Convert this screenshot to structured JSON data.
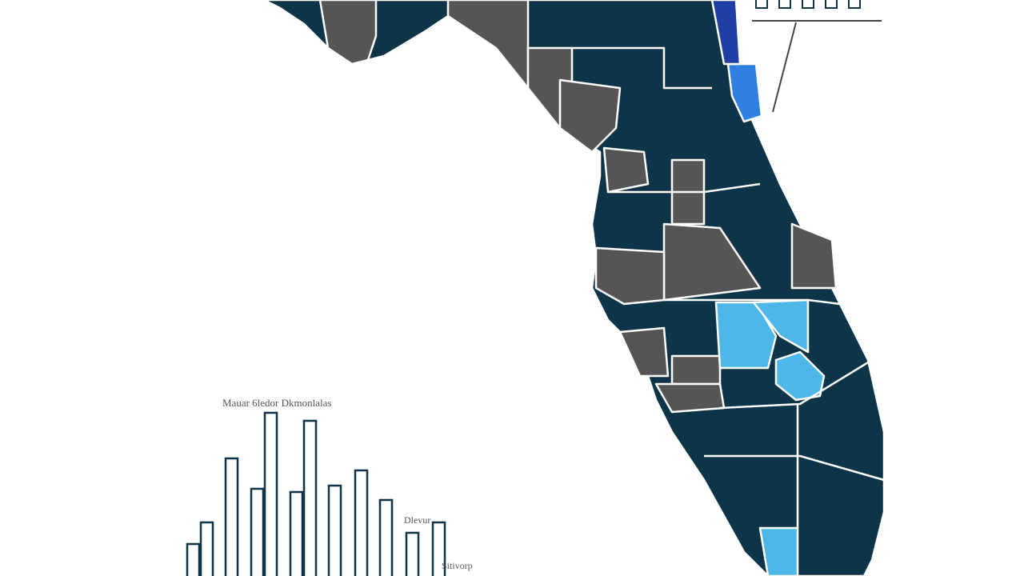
{
  "colors": {
    "county_dark": "#0d3447",
    "county_gray": "#555558",
    "county_light_blue": "#4db8e8",
    "county_mid_blue": "#2f80e0",
    "county_deep_blue": "#1f3fa6",
    "border": "#ffffff",
    "bar_outline": "#0d3447"
  },
  "chart_labels": {
    "title": "Mauar 6ledor Dkmonlalas",
    "label_1": "Dlevur",
    "label_2": "Sitivorp"
  },
  "bars": [
    40,
    67,
    147,
    109,
    204,
    105,
    194,
    113,
    132,
    95,
    54,
    67
  ],
  "legend_boxes": 5
}
